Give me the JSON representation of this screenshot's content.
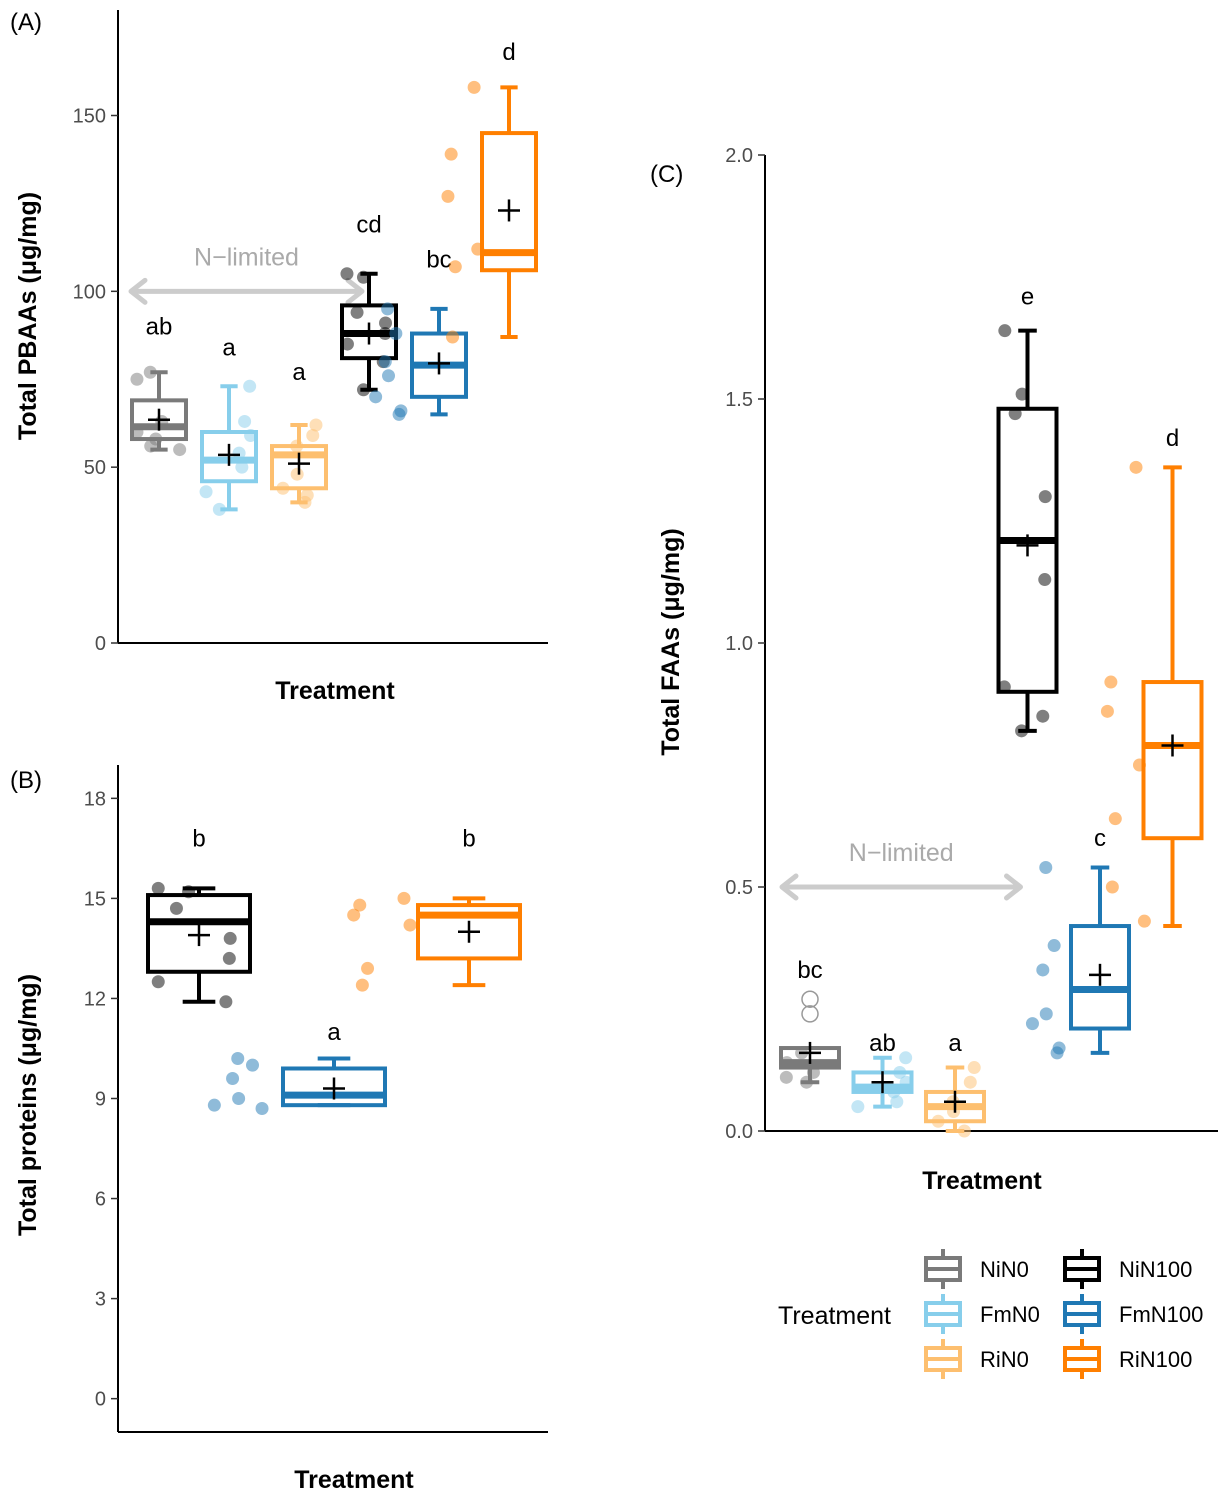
{
  "colors": {
    "NiN0": "#7a7a7a",
    "FmN0": "#87ceeb",
    "RiN0": "#fdbf6f",
    "NiN100": "#000000",
    "FmN100": "#1f78b4",
    "RiN100": "#ff7f00",
    "n_limited": "#cccccc"
  },
  "legend": {
    "title": "Treatment",
    "entries": [
      {
        "label": "NiN0",
        "color_key": "NiN0"
      },
      {
        "label": "NiN100",
        "color_key": "NiN100"
      },
      {
        "label": "FmN0",
        "color_key": "FmN0"
      },
      {
        "label": "FmN100",
        "color_key": "FmN100"
      },
      {
        "label": "RiN0",
        "color_key": "RiN0"
      },
      {
        "label": "RiN100",
        "color_key": "RiN100"
      }
    ]
  },
  "chart_data": [
    {
      "panel": "(A)",
      "type": "box",
      "xlabel": "Treatment",
      "ylabel": "Total PBAAs (μg/mg)",
      "ylim": [
        0,
        180
      ],
      "yticks": [
        "0",
        "50",
        "100",
        "150"
      ],
      "annotation": {
        "text": "N−limited",
        "x_from": 1,
        "x_to": 4,
        "y": 100
      },
      "groups": [
        {
          "name": "NiN0",
          "q1": 58,
          "median": 61.5,
          "q3": 69,
          "whisker_low": 55,
          "whisker_high": 77,
          "mean": 63.5,
          "letter": "ab",
          "letter_y": 90,
          "points": [
            77,
            75,
            63,
            60,
            58,
            56,
            55
          ],
          "outliers": []
        },
        {
          "name": "FmN0",
          "q1": 46,
          "median": 52,
          "q3": 60,
          "whisker_low": 38,
          "whisker_high": 73,
          "mean": 53.5,
          "letter": "a",
          "letter_y": 84,
          "points": [
            73,
            63,
            59,
            54,
            50,
            43,
            38
          ],
          "outliers": []
        },
        {
          "name": "RiN0",
          "q1": 44,
          "median": 53.5,
          "q3": 56,
          "whisker_low": 40,
          "whisker_high": 62,
          "mean": 51,
          "letter": "a",
          "letter_y": 77,
          "points": [
            62,
            59,
            56,
            48,
            44,
            42,
            40
          ],
          "outliers": []
        },
        {
          "name": "NiN100",
          "q1": 81,
          "median": 88,
          "q3": 96,
          "whisker_low": 72,
          "whisker_high": 105,
          "mean": 88,
          "letter": "cd",
          "letter_y": 119,
          "points": [
            105,
            104,
            94,
            91,
            88,
            85,
            80,
            72
          ],
          "outliers": []
        },
        {
          "name": "FmN100",
          "q1": 70,
          "median": 79,
          "q3": 88,
          "whisker_low": 65,
          "whisker_high": 95,
          "mean": 79.5,
          "letter": "bc",
          "letter_y": 109,
          "points": [
            95,
            88,
            80,
            76,
            70,
            66,
            65
          ],
          "outliers": []
        },
        {
          "name": "RiN100",
          "q1": 106,
          "median": 111,
          "q3": 145,
          "whisker_low": 87,
          "whisker_high": 158,
          "mean": 123,
          "letter": "d",
          "letter_y": 168,
          "points": [
            158,
            139,
            127,
            112,
            107,
            87
          ],
          "outliers": []
        }
      ]
    },
    {
      "panel": "(B)",
      "type": "box",
      "xlabel": "Treatment",
      "ylabel": "Total proteins (μg/mg)",
      "ylim": [
        -1,
        19
      ],
      "yticks": [
        "0",
        "3",
        "6",
        "9",
        "12",
        "15",
        "18"
      ],
      "groups": [
        {
          "name": "NiN100",
          "q1": 12.8,
          "median": 14.3,
          "q3": 15.1,
          "whisker_low": 11.9,
          "whisker_high": 15.3,
          "mean": 13.9,
          "letter": "b",
          "letter_y": 16.8,
          "points": [
            15.3,
            15.2,
            14.7,
            13.8,
            13.2,
            12.5,
            11.9
          ],
          "outliers": []
        },
        {
          "name": "FmN100",
          "q1": 8.8,
          "median": 9.1,
          "q3": 9.9,
          "whisker_low": 8.8,
          "whisker_high": 10.2,
          "mean": 9.3,
          "letter": "a",
          "letter_y": 11.0,
          "points": [
            10.2,
            10.0,
            9.6,
            9.0,
            8.8,
            8.7
          ],
          "outliers": []
        },
        {
          "name": "RiN100",
          "q1": 13.2,
          "median": 14.5,
          "q3": 14.8,
          "whisker_low": 12.4,
          "whisker_high": 15.0,
          "mean": 14.0,
          "letter": "b",
          "letter_y": 16.8,
          "points": [
            15.0,
            14.8,
            14.5,
            14.2,
            12.9,
            12.4
          ],
          "outliers": []
        }
      ]
    },
    {
      "panel": "(C)",
      "type": "box",
      "xlabel": "Treatment",
      "ylabel": "Total FAAs (μg/mg)",
      "ylim": [
        0,
        2.0
      ],
      "yticks": [
        "0.0",
        "0.5",
        "1.0",
        "1.5",
        "2.0"
      ],
      "annotation": {
        "text": "N−limited",
        "x_from": 1,
        "x_to": 4,
        "y": 0.5
      },
      "groups": [
        {
          "name": "NiN0",
          "q1": 0.13,
          "median": 0.14,
          "q3": 0.17,
          "whisker_low": 0.1,
          "whisker_high": 0.17,
          "mean": 0.16,
          "letter": "bc",
          "letter_y": 0.33,
          "points": [
            0.16,
            0.14,
            0.12,
            0.11,
            0.1
          ],
          "outliers": [
            0.27,
            0.24
          ]
        },
        {
          "name": "FmN0",
          "q1": 0.08,
          "median": 0.09,
          "q3": 0.12,
          "whisker_low": 0.05,
          "whisker_high": 0.15,
          "mean": 0.1,
          "letter": "ab",
          "letter_y": 0.18,
          "points": [
            0.15,
            0.12,
            0.1,
            0.08,
            0.06,
            0.05
          ],
          "outliers": []
        },
        {
          "name": "RiN0",
          "q1": 0.02,
          "median": 0.05,
          "q3": 0.08,
          "whisker_low": 0.0,
          "whisker_high": 0.13,
          "mean": 0.06,
          "letter": "a",
          "letter_y": 0.18,
          "points": [
            0.13,
            0.1,
            0.06,
            0.04,
            0.02,
            0.0
          ],
          "outliers": []
        },
        {
          "name": "NiN100",
          "q1": 0.9,
          "median": 1.21,
          "q3": 1.48,
          "whisker_low": 0.82,
          "whisker_high": 1.64,
          "mean": 1.2,
          "letter": "e",
          "letter_y": 1.71,
          "points": [
            1.64,
            1.51,
            1.47,
            1.3,
            1.13,
            0.91,
            0.85,
            0.82
          ],
          "outliers": []
        },
        {
          "name": "FmN100",
          "q1": 0.21,
          "median": 0.29,
          "q3": 0.42,
          "whisker_low": 0.16,
          "whisker_high": 0.54,
          "mean": 0.32,
          "letter": "c",
          "letter_y": 0.6,
          "points": [
            0.54,
            0.38,
            0.33,
            0.24,
            0.22,
            0.17,
            0.16
          ],
          "outliers": []
        },
        {
          "name": "RiN100",
          "q1": 0.6,
          "median": 0.79,
          "q3": 0.92,
          "whisker_low": 0.42,
          "whisker_high": 1.36,
          "mean": 0.79,
          "letter": "d",
          "letter_y": 1.42,
          "points": [
            1.36,
            0.92,
            0.86,
            0.75,
            0.64,
            0.5,
            0.43
          ],
          "outliers": []
        }
      ]
    }
  ]
}
